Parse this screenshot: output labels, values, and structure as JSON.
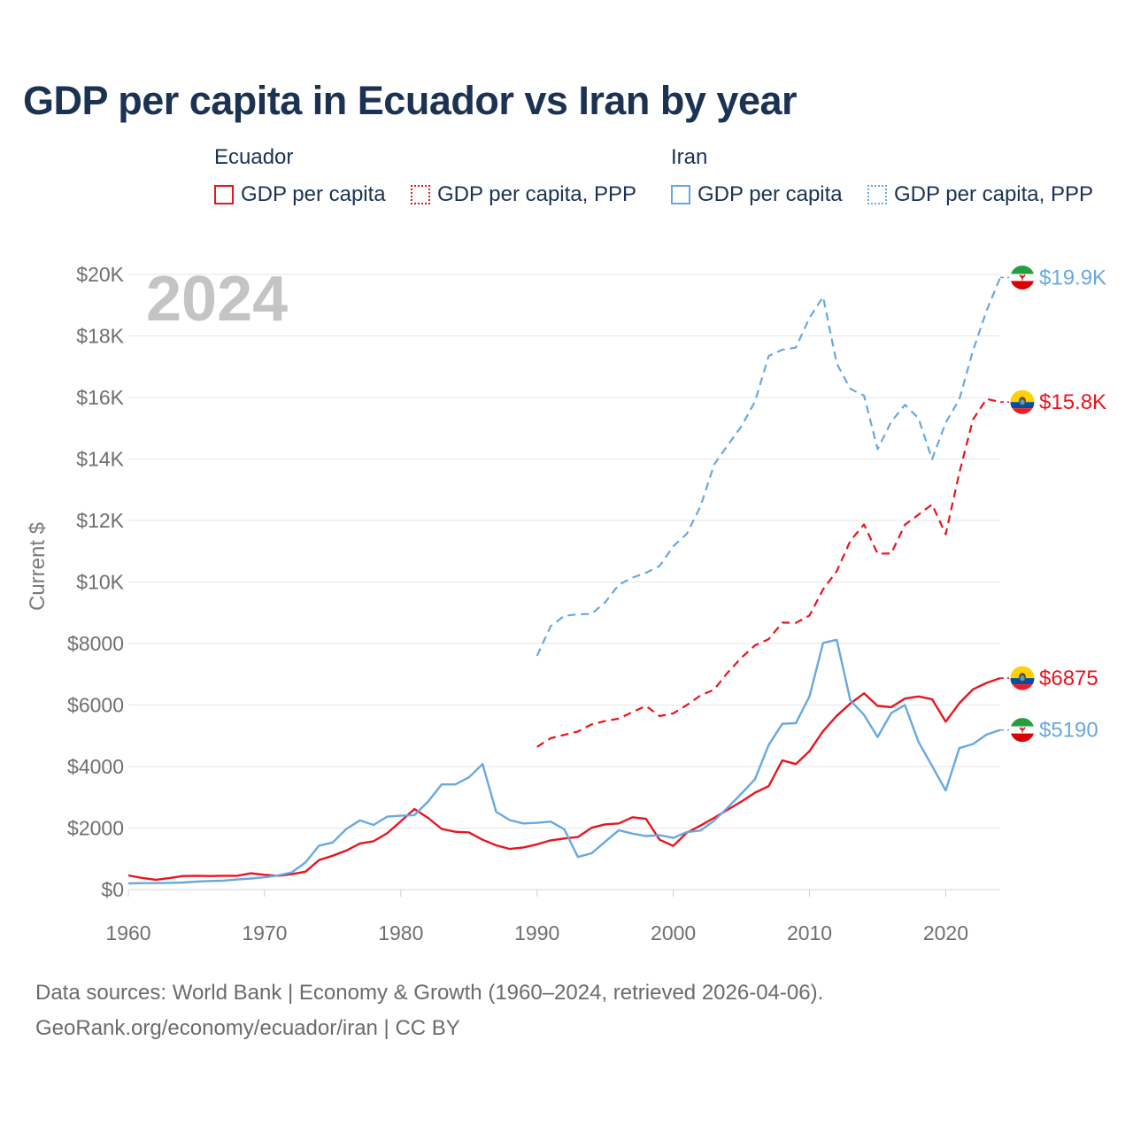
{
  "header": {
    "title": "GDP per capita in Ecuador vs Iran by year"
  },
  "legend": {
    "groups": [
      {
        "name": "Ecuador",
        "items": [
          {
            "label": "GDP per capita",
            "style": "solid"
          },
          {
            "label": "GDP per capita, PPP",
            "style": "dotted"
          }
        ]
      },
      {
        "name": "Iran",
        "items": [
          {
            "label": "GDP per capita",
            "style": "solid"
          },
          {
            "label": "GDP per capita, PPP",
            "style": "dotted"
          }
        ]
      }
    ]
  },
  "footer": {
    "line1": "Data sources: World Bank | Economy & Growth (1960–2024, retrieved 2026-04-06).",
    "line2": "GeoRank.org/economy/ecuador/iran | CC BY"
  },
  "colors": {
    "ecuador": "#e8141e",
    "iran": "#68a8e2",
    "grid": "#e6e6e6",
    "title": "#1b3252"
  },
  "chart_data": {
    "type": "line",
    "title": "GDP per capita in Ecuador vs Iran by year",
    "year_label": "2024",
    "xlabel": "",
    "ylabel": "Current $",
    "xlim": [
      1960,
      2024
    ],
    "ylim": [
      0,
      20000
    ],
    "x_ticks": [
      1960,
      1970,
      1980,
      1990,
      2000,
      2010,
      2020
    ],
    "y_ticks": [
      {
        "value": 0,
        "label": "$0"
      },
      {
        "value": 2000,
        "label": "$2000"
      },
      {
        "value": 4000,
        "label": "$4000"
      },
      {
        "value": 6000,
        "label": "$6000"
      },
      {
        "value": 8000,
        "label": "$8000"
      },
      {
        "value": 10000,
        "label": "$10K"
      },
      {
        "value": 12000,
        "label": "$12K"
      },
      {
        "value": 14000,
        "label": "$14K"
      },
      {
        "value": 16000,
        "label": "$16K"
      },
      {
        "value": 18000,
        "label": "$18K"
      },
      {
        "value": 20000,
        "label": "$20K"
      }
    ],
    "grid": true,
    "series": [
      {
        "name": "Ecuador GDP per capita",
        "country": "ecuador",
        "dashed": false,
        "end_label": "$6875",
        "start_year": 1960,
        "values": [
          460,
          380,
          320,
          370,
          440,
          450,
          440,
          450,
          450,
          530,
          480,
          450,
          500,
          580,
          960,
          1100,
          1270,
          1500,
          1570,
          1830,
          2220,
          2620,
          2330,
          1970,
          1880,
          1860,
          1620,
          1440,
          1320,
          1370,
          1470,
          1600,
          1660,
          1710,
          2010,
          2120,
          2150,
          2350,
          2300,
          1620,
          1420,
          1850,
          2080,
          2330,
          2600,
          2860,
          3150,
          3360,
          4200,
          4080,
          4500,
          5150,
          5650,
          6050,
          6380,
          5970,
          5930,
          6210,
          6280,
          6190,
          5460,
          6060,
          6510,
          6720,
          6875
        ]
      },
      {
        "name": "Iran GDP per capita",
        "country": "iran",
        "dashed": false,
        "end_label": "$5190",
        "start_year": 1960,
        "values": [
          200,
          210,
          210,
          220,
          230,
          260,
          280,
          290,
          330,
          360,
          400,
          460,
          560,
          880,
          1430,
          1530,
          1970,
          2250,
          2100,
          2370,
          2400,
          2420,
          2860,
          3420,
          3420,
          3650,
          4080,
          2530,
          2260,
          2150,
          2170,
          2210,
          1960,
          1060,
          1180,
          1560,
          1930,
          1820,
          1740,
          1770,
          1680,
          1870,
          1920,
          2240,
          2670,
          3120,
          3590,
          4700,
          5390,
          5410,
          6280,
          8020,
          8120,
          6150,
          5680,
          4960,
          5740,
          6000,
          4800,
          4020,
          3220,
          4600,
          4730,
          5040,
          5190
        ]
      },
      {
        "name": "Ecuador GDP per capita, PPP",
        "country": "ecuador",
        "dashed": true,
        "end_label": "$15.8K",
        "start_year": 1990,
        "values": [
          4640,
          4920,
          5030,
          5140,
          5370,
          5480,
          5560,
          5770,
          5970,
          5640,
          5730,
          6000,
          6310,
          6500,
          7060,
          7540,
          7940,
          8140,
          8680,
          8670,
          8910,
          9760,
          10350,
          11340,
          11870,
          10920,
          10930,
          11860,
          12190,
          12520,
          11550,
          13550,
          15280,
          15950,
          15850
        ]
      },
      {
        "name": "Iran GDP per capita, PPP",
        "country": "iran",
        "dashed": true,
        "end_label": "$19.9K",
        "start_year": 1990,
        "values": [
          7600,
          8560,
          8900,
          8950,
          8960,
          9340,
          9910,
          10140,
          10300,
          10520,
          11160,
          11570,
          12460,
          13820,
          14450,
          15060,
          15870,
          17350,
          17550,
          17620,
          18590,
          19270,
          17100,
          16280,
          16060,
          14320,
          15210,
          15760,
          15320,
          13990,
          15180,
          15940,
          17520,
          18820,
          19900
        ]
      }
    ]
  }
}
